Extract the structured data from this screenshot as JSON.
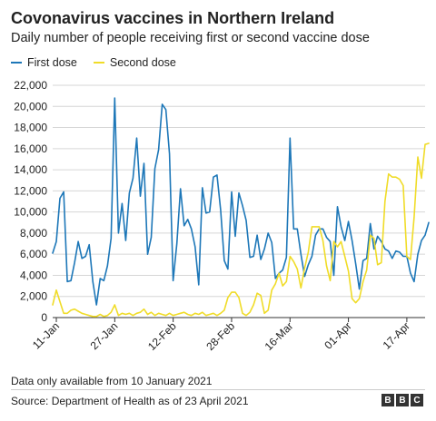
{
  "header": {
    "title": "Covonavirus vaccines in Northern Ireland",
    "subtitle": "Daily number of people receiving first or second vaccine dose"
  },
  "legend": {
    "first": "First dose",
    "second": "Second dose"
  },
  "colors": {
    "first": "#1d77b8",
    "second": "#f0dc28",
    "grid": "#d6d6d6",
    "text": "#222222"
  },
  "footer": {
    "note": "Data only available from 10 January 2021",
    "source": "Source: Department of Health as of 23 April 2021",
    "logo_letters": [
      "B",
      "B",
      "C"
    ]
  },
  "chart_data": {
    "type": "line",
    "title": "Covonavirus vaccines in Northern Ireland",
    "subtitle": "Daily number of people receiving first or second vaccine dose",
    "x_start": "2021-01-10",
    "x_end": "2021-04-22",
    "ylim": [
      0,
      22000
    ],
    "yticks": [
      0,
      2000,
      4000,
      6000,
      8000,
      10000,
      12000,
      14000,
      16000,
      18000,
      20000,
      22000
    ],
    "ytick_labels": [
      "0",
      "2,000",
      "4,000",
      "6,000",
      "8,000",
      "10,000",
      "12,000",
      "14,000",
      "16,000",
      "18,000",
      "20,000",
      "22,000"
    ],
    "xtick_labels": [
      "11-Jan",
      "27-Jan",
      "12-Feb",
      "28-Feb",
      "16-Mar",
      "01-Apr",
      "17-Apr"
    ],
    "xtick_dates": [
      "2021-01-11",
      "2021-01-27",
      "2021-02-12",
      "2021-02-28",
      "2021-03-16",
      "2021-04-01",
      "2021-04-17"
    ],
    "grid": true,
    "legend_position": "top-left",
    "series": [
      {
        "name": "First dose",
        "color": "#1d77b8",
        "values": [
          6100,
          7200,
          11300,
          11900,
          3400,
          3500,
          5200,
          7200,
          5600,
          5800,
          6900,
          3400,
          1200,
          3700,
          3500,
          4900,
          7500,
          20800,
          8000,
          10800,
          7300,
          11800,
          13200,
          17000,
          11500,
          14600,
          6000,
          7600,
          14100,
          15900,
          20200,
          19700,
          15500,
          3500,
          7000,
          12200,
          8700,
          9300,
          8400,
          6700,
          3100,
          12300,
          9900,
          10000,
          13300,
          13500,
          10200,
          5400,
          4600,
          11900,
          7700,
          11800,
          10600,
          9200,
          5700,
          5800,
          7800,
          5500,
          6500,
          8000,
          7100,
          3700,
          4200,
          4500,
          5700,
          17000,
          8400,
          8400,
          6000,
          3900,
          5000,
          5800,
          7800,
          8400,
          8400,
          7600,
          7200,
          4000,
          10500,
          8600,
          7300,
          9100,
          7300,
          5100,
          2700,
          5400,
          5600,
          8900,
          6500,
          7700,
          7200,
          6500,
          6300,
          5600,
          6300,
          6200,
          5800,
          5800,
          4200,
          3400,
          6000,
          7300,
          7800,
          9000
        ]
      },
      {
        "name": "Second dose",
        "color": "#f0dc28",
        "values": [
          1200,
          2600,
          1500,
          400,
          400,
          700,
          800,
          600,
          400,
          300,
          200,
          100,
          100,
          300,
          100,
          200,
          500,
          1200,
          200,
          400,
          300,
          400,
          200,
          400,
          500,
          800,
          300,
          500,
          200,
          400,
          300,
          200,
          400,
          200,
          300,
          400,
          500,
          300,
          200,
          400,
          300,
          500,
          200,
          300,
          400,
          200,
          400,
          700,
          1900,
          2400,
          2400,
          1900,
          400,
          200,
          500,
          1200,
          2300,
          2100,
          400,
          700,
          2600,
          3200,
          4200,
          3000,
          3400,
          5800,
          5300,
          4600,
          2800,
          4700,
          6200,
          8600,
          8600,
          8600,
          7300,
          4900,
          3500,
          7200,
          6700,
          7200,
          5800,
          4400,
          1800,
          1400,
          1800,
          3400,
          4500,
          7800,
          7500,
          5000,
          5200,
          11000,
          13600,
          13300,
          13300,
          13100,
          12500,
          5800,
          5500,
          9500,
          15200,
          13200,
          16400,
          16500
        ]
      }
    ]
  }
}
